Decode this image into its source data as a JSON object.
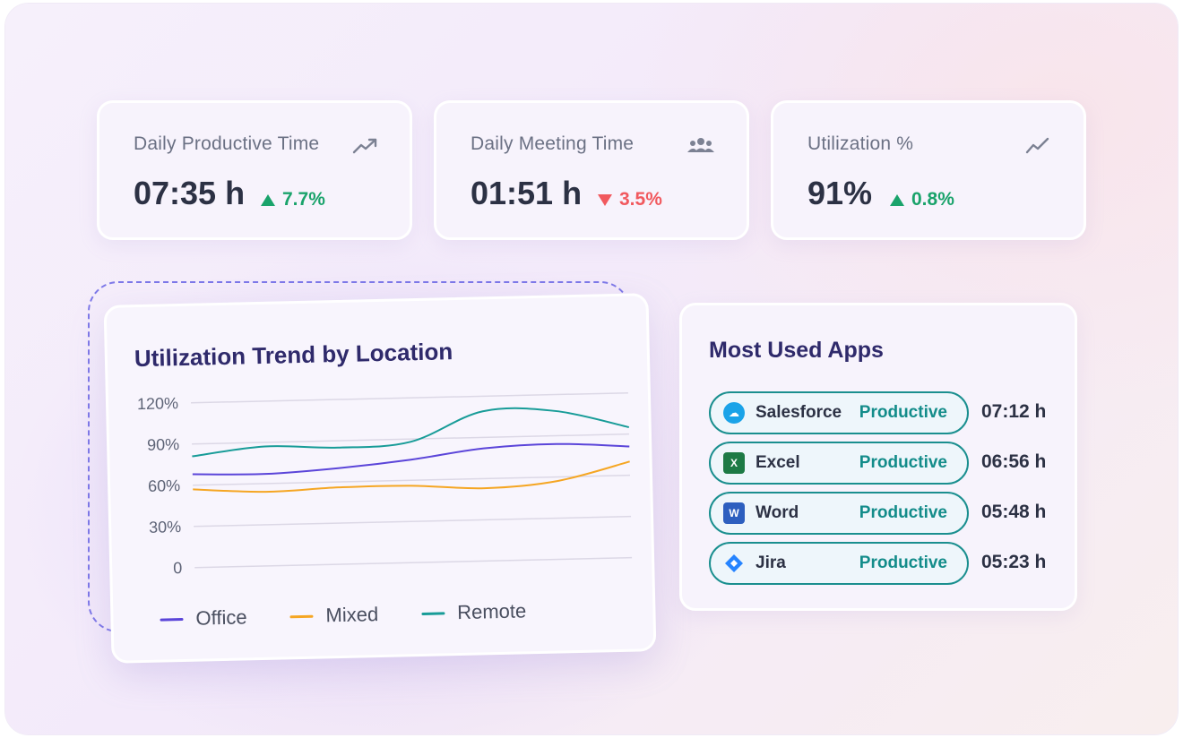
{
  "kpis": [
    {
      "label": "Daily Productive Time",
      "value": "07:35 h",
      "delta": "7.7%",
      "direction": "up",
      "icon": "trending-up-icon"
    },
    {
      "label": "Daily Meeting Time",
      "value": "01:51 h",
      "delta": "3.5%",
      "direction": "down",
      "icon": "people-group-icon"
    },
    {
      "label": "Utilization %",
      "value": "91%",
      "delta": "0.8%",
      "direction": "up",
      "icon": "line-chart-icon"
    }
  ],
  "colors": {
    "up": "#1aa36b",
    "down": "#f1595e",
    "office": "#5b45d9",
    "mixed": "#f5a623",
    "remote": "#189c98",
    "app_border": "#1a8f8f"
  },
  "chart_data": {
    "type": "line",
    "title": "Utilization Trend by Location",
    "y_ticks": [
      "120%",
      "90%",
      "60%",
      "30%",
      "0"
    ],
    "ylim": [
      0,
      120
    ],
    "x": [
      0,
      1,
      2,
      3,
      4,
      5,
      6
    ],
    "series": [
      {
        "name": "Office",
        "values": [
          68,
          67,
          70,
          75,
          82,
          84,
          81
        ]
      },
      {
        "name": "Mixed",
        "values": [
          57,
          54,
          56,
          56,
          53,
          57,
          70
        ]
      },
      {
        "name": "Remote",
        "values": [
          81,
          87,
          85,
          88,
          109,
          108,
          95
        ]
      }
    ],
    "legend_position": "bottom"
  },
  "apps": {
    "title": "Most Used Apps",
    "items": [
      {
        "name": "Salesforce",
        "status": "Productive",
        "time": "07:12 h",
        "icon": "salesforce-icon"
      },
      {
        "name": "Excel",
        "status": "Productive",
        "time": "06:56 h",
        "icon": "excel-icon"
      },
      {
        "name": "Word",
        "status": "Productive",
        "time": "05:48 h",
        "icon": "word-icon"
      },
      {
        "name": "Jira",
        "status": "Productive",
        "time": "05:23 h",
        "icon": "jira-icon"
      }
    ]
  }
}
